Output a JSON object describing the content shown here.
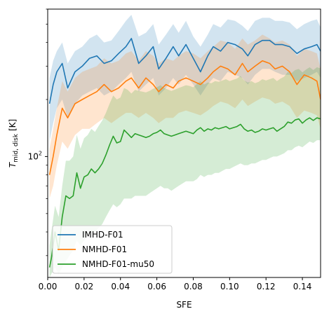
{
  "chart_data": {
    "type": "line",
    "xlabel": "SFE",
    "ylabel_main": "T",
    "ylabel_sub": "mid, disk",
    "ylabel_unit": "[K]",
    "xlim": [
      0.0,
      0.15
    ],
    "ylim": [
      23,
      600
    ],
    "yscale": "log",
    "grid": false,
    "legend_position": "bottom-left",
    "x_ticks": [
      0.0,
      0.02,
      0.04,
      0.06,
      0.08,
      0.1,
      0.12,
      0.14
    ],
    "x_tick_labels": [
      "0.00",
      "0.02",
      "0.04",
      "0.06",
      "0.08",
      "0.10",
      "0.12",
      "0.14"
    ],
    "y_major_ticks": [
      100
    ],
    "y_major_tick_labels": [
      "10",
      "2"
    ],
    "y_minor_ticks": [
      30,
      40,
      50,
      60,
      70,
      80,
      90,
      200,
      300,
      400,
      500,
      600
    ],
    "series": [
      {
        "name": "IMHD-F01",
        "color": "#1f77b4",
        "x": [
          0.001,
          0.003,
          0.005,
          0.008,
          0.011,
          0.015,
          0.019,
          0.023,
          0.027,
          0.031,
          0.035,
          0.039,
          0.043,
          0.046,
          0.05,
          0.054,
          0.058,
          0.061,
          0.065,
          0.069,
          0.072,
          0.076,
          0.08,
          0.084,
          0.088,
          0.091,
          0.095,
          0.099,
          0.103,
          0.107,
          0.11,
          0.114,
          0.118,
          0.122,
          0.125,
          0.129,
          0.133,
          0.137,
          0.141,
          0.145,
          0.148,
          0.15
        ],
        "y": [
          190,
          240,
          280,
          310,
          230,
          280,
          300,
          330,
          340,
          310,
          320,
          350,
          380,
          420,
          310,
          340,
          380,
          290,
          330,
          380,
          340,
          390,
          330,
          280,
          340,
          380,
          360,
          400,
          390,
          370,
          340,
          390,
          410,
          410,
          390,
          390,
          380,
          350,
          370,
          380,
          390,
          360
        ],
        "band_low": [
          120,
          150,
          180,
          200,
          160,
          190,
          210,
          220,
          230,
          210,
          220,
          240,
          260,
          280,
          220,
          240,
          260,
          210,
          230,
          260,
          240,
          270,
          240,
          210,
          240,
          260,
          250,
          280,
          270,
          260,
          240,
          270,
          290,
          290,
          280,
          270,
          270,
          250,
          260,
          270,
          280,
          260
        ],
        "band_high": [
          260,
          320,
          360,
          400,
          310,
          360,
          380,
          420,
          440,
          400,
          410,
          460,
          520,
          560,
          430,
          450,
          500,
          390,
          440,
          500,
          450,
          520,
          430,
          380,
          440,
          500,
          480,
          530,
          520,
          490,
          460,
          520,
          540,
          540,
          520,
          520,
          510,
          470,
          500,
          520,
          530,
          480
        ]
      },
      {
        "name": "NMHD-F01",
        "color": "#ff7f0e",
        "x": [
          0.001,
          0.003,
          0.005,
          0.008,
          0.011,
          0.015,
          0.019,
          0.023,
          0.027,
          0.031,
          0.035,
          0.039,
          0.043,
          0.046,
          0.05,
          0.054,
          0.058,
          0.061,
          0.065,
          0.069,
          0.072,
          0.076,
          0.08,
          0.084,
          0.088,
          0.091,
          0.095,
          0.099,
          0.103,
          0.107,
          0.11,
          0.114,
          0.118,
          0.122,
          0.125,
          0.129,
          0.133,
          0.137,
          0.141,
          0.145,
          0.148,
          0.15
        ],
        "y": [
          80,
          100,
          130,
          180,
          160,
          190,
          200,
          210,
          220,
          240,
          220,
          230,
          250,
          260,
          230,
          260,
          240,
          220,
          240,
          230,
          250,
          260,
          250,
          240,
          260,
          280,
          300,
          290,
          270,
          310,
          280,
          300,
          320,
          310,
          290,
          300,
          280,
          240,
          270,
          260,
          250,
          200
        ],
        "band_low": [
          60,
          70,
          90,
          120,
          110,
          130,
          140,
          140,
          150,
          160,
          150,
          160,
          170,
          170,
          160,
          170,
          160,
          150,
          160,
          160,
          170,
          175,
          170,
          165,
          175,
          185,
          195,
          190,
          180,
          200,
          185,
          195,
          205,
          200,
          190,
          195,
          185,
          160,
          175,
          170,
          165,
          140
        ],
        "band_high": [
          110,
          140,
          180,
          250,
          220,
          260,
          280,
          290,
          300,
          330,
          310,
          320,
          350,
          360,
          320,
          360,
          340,
          310,
          330,
          320,
          340,
          360,
          350,
          330,
          360,
          380,
          410,
          400,
          370,
          420,
          390,
          410,
          440,
          420,
          400,
          410,
          390,
          340,
          370,
          360,
          350,
          290
        ]
      },
      {
        "name": "NMHD-F01-mu50",
        "color": "#2ca02c",
        "x": [
          0.001,
          0.002,
          0.004,
          0.006,
          0.008,
          0.01,
          0.012,
          0.014,
          0.016,
          0.018,
          0.02,
          0.022,
          0.024,
          0.026,
          0.028,
          0.03,
          0.032,
          0.034,
          0.036,
          0.038,
          0.04,
          0.042,
          0.044,
          0.046,
          0.048,
          0.05,
          0.052,
          0.054,
          0.056,
          0.058,
          0.06,
          0.062,
          0.064,
          0.066,
          0.068,
          0.07,
          0.072,
          0.074,
          0.076,
          0.078,
          0.08,
          0.082,
          0.084,
          0.086,
          0.088,
          0.09,
          0.092,
          0.094,
          0.096,
          0.098,
          0.1,
          0.102,
          0.104,
          0.106,
          0.108,
          0.11,
          0.112,
          0.114,
          0.116,
          0.118,
          0.12,
          0.122,
          0.124,
          0.126,
          0.128,
          0.13,
          0.132,
          0.134,
          0.136,
          0.138,
          0.14,
          0.142,
          0.144,
          0.146,
          0.148,
          0.15
        ],
        "y": [
          26,
          29,
          40,
          32,
          48,
          62,
          60,
          62,
          82,
          68,
          78,
          80,
          86,
          82,
          86,
          92,
          102,
          115,
          128,
          118,
          120,
          138,
          132,
          126,
          132,
          130,
          128,
          126,
          128,
          132,
          134,
          138,
          132,
          130,
          128,
          130,
          132,
          134,
          136,
          134,
          132,
          138,
          142,
          136,
          140,
          138,
          142,
          140,
          142,
          144,
          140,
          142,
          144,
          148,
          140,
          136,
          138,
          134,
          136,
          140,
          138,
          140,
          142,
          136,
          140,
          144,
          152,
          150,
          156,
          158,
          150,
          156,
          160,
          155,
          160,
          158
        ],
        "band_low": [
          23,
          24,
          26,
          24,
          26,
          28,
          30,
          32,
          36,
          34,
          36,
          38,
          40,
          40,
          42,
          44,
          48,
          52,
          56,
          54,
          56,
          60,
          60,
          60,
          62,
          62,
          62,
          62,
          64,
          66,
          68,
          70,
          68,
          68,
          66,
          68,
          70,
          72,
          74,
          74,
          74,
          76,
          80,
          78,
          80,
          80,
          82,
          82,
          84,
          86,
          86,
          88,
          90,
          92,
          90,
          90,
          92,
          92,
          94,
          96,
          96,
          98,
          100,
          100,
          102,
          104,
          108,
          108,
          112,
          114,
          112,
          116,
          120,
          118,
          122,
          122
        ],
        "band_high": [
          34,
          40,
          55,
          48,
          70,
          95,
          95,
          100,
          130,
          110,
          125,
          130,
          140,
          135,
          145,
          155,
          170,
          190,
          210,
          200,
          205,
          230,
          225,
          215,
          225,
          222,
          220,
          218,
          222,
          228,
          232,
          238,
          230,
          226,
          222,
          226,
          230,
          234,
          238,
          236,
          232,
          242,
          250,
          240,
          246,
          244,
          250,
          248,
          252,
          256,
          250,
          254,
          258,
          266,
          252,
          246,
          250,
          244,
          248,
          256,
          252,
          256,
          260,
          250,
          258,
          264,
          280,
          276,
          286,
          290,
          278,
          288,
          296,
          286,
          296,
          292
        ]
      }
    ]
  }
}
